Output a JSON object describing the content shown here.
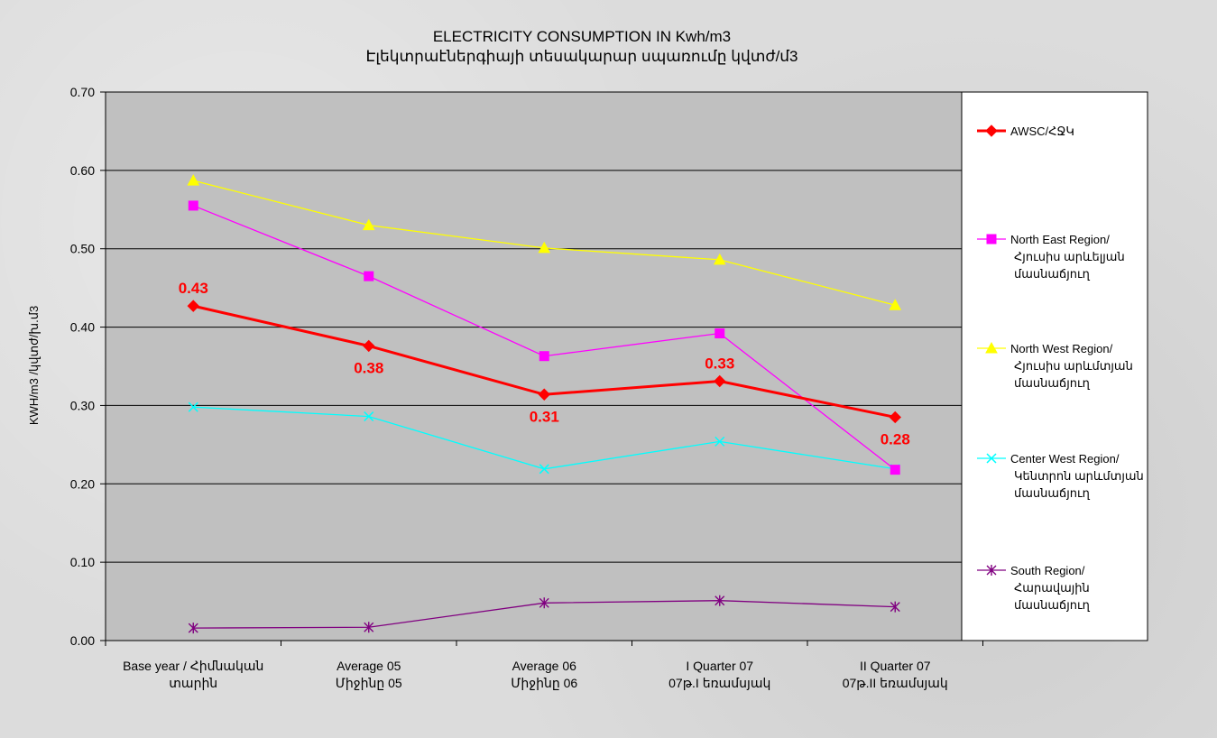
{
  "chart_data": {
    "type": "line",
    "title": "ELECTRICITY CONSUMPTION IN Kwh/m3",
    "subtitle": "Էլեկտրաէներգիայի տեսակարար սպառումը կվտժ/մ3",
    "ylabel": "KWH/m3   /կվտժ/խ.մ3",
    "xlabel": "",
    "ylim": [
      0,
      0.7
    ],
    "yticks": [
      "0.00",
      "0.10",
      "0.20",
      "0.30",
      "0.40",
      "0.50",
      "0.60",
      "0.70"
    ],
    "grid": true,
    "legend_position": "right",
    "categories": [
      [
        "Base year / Հիմնական",
        "տարին"
      ],
      [
        "Average 05",
        "Միջինը 05"
      ],
      [
        "Average 06",
        "Միջինը 06"
      ],
      [
        "I Quarter 07",
        "07թ.I եռամսյակ"
      ],
      [
        "II Quarter 07",
        "07թ.II եռամսյակ"
      ]
    ],
    "series": [
      {
        "name": [
          "AWSC/ՀՋԿ"
        ],
        "values": [
          0.427,
          0.376,
          0.314,
          0.331,
          0.285
        ],
        "data_labels": [
          "0.43",
          "0.38",
          "0.31",
          "0.33",
          "0.28"
        ],
        "label_pos": [
          "above",
          "below",
          "below",
          "above",
          "below"
        ],
        "color": "#ff0000",
        "marker": "diamond",
        "width": 3
      },
      {
        "name": [
          "North East Region/",
          "Հյուսիս արևելյան",
          "մասնաճյուղ"
        ],
        "values": [
          0.555,
          0.465,
          0.363,
          0.392,
          0.218
        ],
        "color": "#ff00ff",
        "marker": "square",
        "width": 1.3
      },
      {
        "name": [
          "North West Region/",
          "Հյուսիս արևմտյան",
          "մասնաճյուղ"
        ],
        "values": [
          0.587,
          0.53,
          0.501,
          0.486,
          0.428
        ],
        "color": "#ffff00",
        "marker": "triangle",
        "width": 1.3
      },
      {
        "name": [
          "Center West Region/",
          "Կենտրոն արևմտյան",
          "մասնաճյուղ"
        ],
        "values": [
          0.298,
          0.286,
          0.219,
          0.254,
          0.219
        ],
        "color": "#00ffff",
        "marker": "x",
        "width": 1.3
      },
      {
        "name": [
          "South Region/",
          "Հարավային",
          "մասնաճյուղ"
        ],
        "values": [
          0.016,
          0.017,
          0.048,
          0.051,
          0.043
        ],
        "color": "#800080",
        "marker": "star",
        "width": 1.3
      }
    ]
  }
}
